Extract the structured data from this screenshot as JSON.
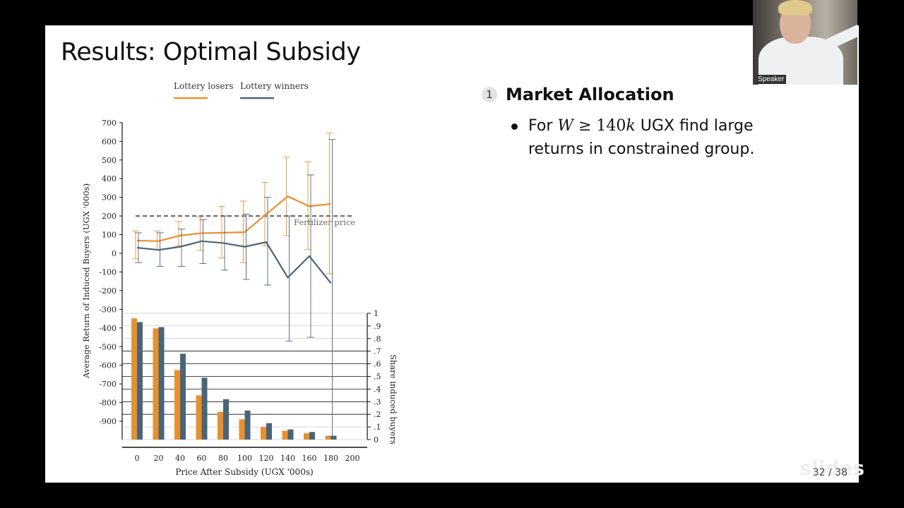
{
  "slide": {
    "title": "Results: Optimal Subsidy",
    "page_number": "32 / 38"
  },
  "bullets": {
    "item_number": "1",
    "heading": "Market Allocation",
    "sub_prefix": "For ",
    "sub_var": "W",
    "sub_geq": " ≥ ",
    "sub_value": "140",
    "sub_unit": "k",
    "sub_suffix_1": " UGX find large",
    "sub_line2": "returns in constrained group."
  },
  "speaker": {
    "label": "Speaker"
  },
  "colors": {
    "losers": "#e8902e",
    "winners": "#4a6578",
    "refline": "#777777"
  },
  "chart_data": [
    {
      "type": "line",
      "xlabel": "Price After Subsidy (UGX '000s)",
      "ylabel": "Average Return of Induced Buyers (UGX '000s)",
      "x": [
        0,
        20,
        40,
        60,
        80,
        100,
        120,
        140,
        160,
        180
      ],
      "x_ticks": [
        "0",
        "20",
        "40",
        "60",
        "80",
        "100",
        "120",
        "140",
        "160",
        "180",
        "200"
      ],
      "y_ticks": [
        "700",
        "600",
        "500",
        "400",
        "300",
        "200",
        "100",
        "0",
        "-100",
        "-200",
        "-300",
        "-400",
        "-500",
        "-600",
        "-700",
        "-800",
        "-900"
      ],
      "ylim": [
        -900,
        700
      ],
      "legend": [
        "Lottery losers",
        "Lottery winners"
      ],
      "legend_position": "top",
      "series": [
        {
          "name": "Lottery losers",
          "values": [
            68,
            65,
            95,
            108,
            110,
            113,
            210,
            305,
            252,
            265
          ],
          "ci_low": [
            -30,
            20,
            40,
            15,
            -25,
            -50,
            40,
            95,
            20,
            -110
          ],
          "ci_high": [
            120,
            120,
            170,
            195,
            250,
            280,
            380,
            515,
            490,
            645
          ]
        },
        {
          "name": "Lottery winners",
          "values": [
            30,
            18,
            35,
            65,
            55,
            35,
            60,
            -130,
            -15,
            -160
          ],
          "ci_low": [
            -50,
            -70,
            -70,
            -55,
            -90,
            -140,
            -170,
            -470,
            -450,
            -980
          ],
          "ci_high": [
            110,
            110,
            130,
            180,
            200,
            210,
            300,
            200,
            420,
            610
          ]
        }
      ],
      "annotations": [
        {
          "text": "Fertilizer price",
          "y": 200
        }
      ]
    },
    {
      "type": "bar",
      "categories": [
        "0",
        "20",
        "40",
        "60",
        "80",
        "100",
        "120",
        "140",
        "160",
        "180",
        "200"
      ],
      "ylabel": "Share induced buyers",
      "y_ticks": [
        "1",
        ".9",
        ".8",
        ".7",
        ".6",
        ".5",
        ".4",
        ".3",
        ".2",
        ".1",
        "0"
      ],
      "ylim": [
        0,
        1
      ],
      "series": [
        {
          "name": "Lottery losers",
          "values": [
            0.96,
            0.88,
            0.55,
            0.35,
            0.22,
            0.16,
            0.1,
            0.07,
            0.05,
            0.03,
            0
          ]
        },
        {
          "name": "Lottery winners",
          "values": [
            0.93,
            0.89,
            0.68,
            0.49,
            0.32,
            0.23,
            0.13,
            0.08,
            0.06,
            0.03,
            0
          ]
        }
      ]
    }
  ]
}
